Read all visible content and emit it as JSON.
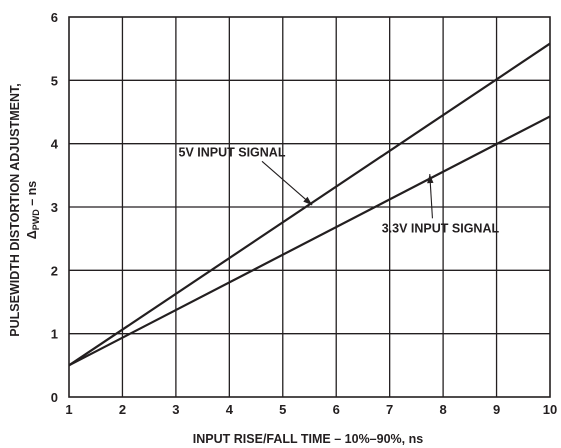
{
  "chart_data": {
    "type": "line",
    "xlabel": "INPUT RISE/FALL TIME – 10%–90%, ns",
    "ylabel_line1": "PULSEWIDTH DISTORTION ADJUSTMENT,",
    "ylabel_line2_symbol": "Δ",
    "ylabel_line2_sub": "PWD",
    "ylabel_line2_suffix": " – ns",
    "xlim": [
      1,
      10
    ],
    "ylim": [
      0,
      6
    ],
    "xticks": [
      1,
      2,
      3,
      4,
      5,
      6,
      7,
      8,
      9,
      10
    ],
    "yticks": [
      0,
      1,
      2,
      3,
      4,
      5,
      6
    ],
    "grid": true,
    "series": [
      {
        "name": "5V INPUT SIGNAL",
        "x": [
          1,
          10
        ],
        "y": [
          0.5,
          5.58
        ]
      },
      {
        "name": "3.3V INPUT SIGNAL",
        "x": [
          1,
          10
        ],
        "y": [
          0.5,
          4.43
        ]
      }
    ],
    "annotations": [
      {
        "text": "5V INPUT SIGNAL",
        "label_at": [
          4.05,
          3.8
        ],
        "arrow_to": [
          5.55,
          3.03
        ]
      },
      {
        "text": "3.3V INPUT SIGNAL",
        "label_at": [
          7.95,
          2.6
        ],
        "arrow_to": [
          7.75,
          3.52
        ]
      }
    ]
  }
}
